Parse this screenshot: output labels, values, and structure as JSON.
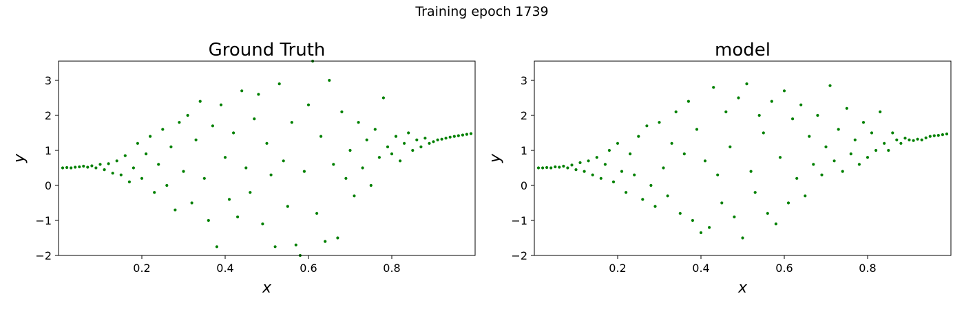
{
  "figure": {
    "suptitle": "Training epoch 1739",
    "point_color": "#008000"
  },
  "chart_data": [
    {
      "type": "scatter",
      "title": "Ground Truth",
      "xlabel": "x",
      "ylabel": "y",
      "xlim": [
        0.0,
        1.0
      ],
      "ylim": [
        -2,
        3.55
      ],
      "xticks": [
        0.2,
        0.4,
        0.6,
        0.8
      ],
      "yticks": [
        -2,
        -1,
        0,
        1,
        2,
        3
      ],
      "xtick_labels": [
        "0.2",
        "0.4",
        "0.6",
        "0.8"
      ],
      "ytick_labels": [
        "−2",
        "−1",
        "0",
        "1",
        "2",
        "3"
      ],
      "grid": false,
      "series": [
        {
          "color": "#008000",
          "points": [
            [
              0.01,
              0.5
            ],
            [
              0.02,
              0.51
            ],
            [
              0.03,
              0.5
            ],
            [
              0.04,
              0.52
            ],
            [
              0.05,
              0.53
            ],
            [
              0.06,
              0.55
            ],
            [
              0.07,
              0.52
            ],
            [
              0.08,
              0.56
            ],
            [
              0.09,
              0.5
            ],
            [
              0.1,
              0.6
            ],
            [
              0.11,
              0.45
            ],
            [
              0.12,
              0.62
            ],
            [
              0.13,
              0.35
            ],
            [
              0.14,
              0.7
            ],
            [
              0.15,
              0.3
            ],
            [
              0.16,
              0.85
            ],
            [
              0.17,
              0.1
            ],
            [
              0.18,
              0.5
            ],
            [
              0.19,
              1.2
            ],
            [
              0.2,
              0.2
            ],
            [
              0.21,
              0.9
            ],
            [
              0.22,
              1.4
            ],
            [
              0.23,
              -0.2
            ],
            [
              0.24,
              0.6
            ],
            [
              0.25,
              1.6
            ],
            [
              0.26,
              0.0
            ],
            [
              0.27,
              1.1
            ],
            [
              0.28,
              -0.7
            ],
            [
              0.29,
              1.8
            ],
            [
              0.3,
              0.4
            ],
            [
              0.31,
              2.0
            ],
            [
              0.32,
              -0.5
            ],
            [
              0.33,
              1.3
            ],
            [
              0.34,
              2.4
            ],
            [
              0.35,
              0.2
            ],
            [
              0.36,
              -1.0
            ],
            [
              0.37,
              1.7
            ],
            [
              0.38,
              -1.75
            ],
            [
              0.39,
              2.3
            ],
            [
              0.4,
              0.8
            ],
            [
              0.41,
              -0.4
            ],
            [
              0.42,
              1.5
            ],
            [
              0.43,
              -0.9
            ],
            [
              0.44,
              2.7
            ],
            [
              0.45,
              0.5
            ],
            [
              0.46,
              -0.2
            ],
            [
              0.47,
              1.9
            ],
            [
              0.48,
              2.6
            ],
            [
              0.49,
              -1.1
            ],
            [
              0.5,
              1.2
            ],
            [
              0.51,
              0.3
            ],
            [
              0.52,
              -1.75
            ],
            [
              0.53,
              2.9
            ],
            [
              0.54,
              0.7
            ],
            [
              0.55,
              -0.6
            ],
            [
              0.56,
              1.8
            ],
            [
              0.57,
              -1.7
            ],
            [
              0.58,
              -2.0
            ],
            [
              0.59,
              0.4
            ],
            [
              0.6,
              2.3
            ],
            [
              0.61,
              3.55
            ],
            [
              0.62,
              -0.8
            ],
            [
              0.63,
              1.4
            ],
            [
              0.64,
              -1.6
            ],
            [
              0.65,
              3.0
            ],
            [
              0.66,
              0.6
            ],
            [
              0.67,
              -1.5
            ],
            [
              0.68,
              2.1
            ],
            [
              0.69,
              0.2
            ],
            [
              0.7,
              1.0
            ],
            [
              0.71,
              -0.3
            ],
            [
              0.72,
              1.8
            ],
            [
              0.73,
              0.5
            ],
            [
              0.74,
              1.3
            ],
            [
              0.75,
              0.0
            ],
            [
              0.76,
              1.6
            ],
            [
              0.77,
              0.8
            ],
            [
              0.78,
              2.5
            ],
            [
              0.79,
              1.1
            ],
            [
              0.8,
              0.9
            ],
            [
              0.81,
              1.4
            ],
            [
              0.82,
              0.7
            ],
            [
              0.83,
              1.2
            ],
            [
              0.84,
              1.5
            ],
            [
              0.85,
              1.0
            ],
            [
              0.86,
              1.3
            ],
            [
              0.87,
              1.1
            ],
            [
              0.88,
              1.35
            ],
            [
              0.89,
              1.2
            ],
            [
              0.9,
              1.25
            ],
            [
              0.91,
              1.3
            ],
            [
              0.92,
              1.32
            ],
            [
              0.93,
              1.35
            ],
            [
              0.94,
              1.38
            ],
            [
              0.95,
              1.4
            ],
            [
              0.96,
              1.42
            ],
            [
              0.97,
              1.44
            ],
            [
              0.98,
              1.46
            ],
            [
              0.99,
              1.48
            ]
          ]
        }
      ]
    },
    {
      "type": "scatter",
      "title": "model",
      "xlabel": "x",
      "ylabel": "y",
      "xlim": [
        0.0,
        1.0
      ],
      "ylim": [
        -2,
        3.55
      ],
      "xticks": [
        0.2,
        0.4,
        0.6,
        0.8
      ],
      "yticks": [
        -2,
        -1,
        0,
        1,
        2,
        3
      ],
      "xtick_labels": [
        "0.2",
        "0.4",
        "0.6",
        "0.8"
      ],
      "ytick_labels": [
        "−2",
        "−1",
        "0",
        "1",
        "2",
        "3"
      ],
      "grid": false,
      "series": [
        {
          "color": "#008000",
          "points": [
            [
              0.01,
              0.5
            ],
            [
              0.02,
              0.5
            ],
            [
              0.03,
              0.51
            ],
            [
              0.04,
              0.5
            ],
            [
              0.05,
              0.53
            ],
            [
              0.06,
              0.52
            ],
            [
              0.07,
              0.55
            ],
            [
              0.08,
              0.5
            ],
            [
              0.09,
              0.58
            ],
            [
              0.1,
              0.45
            ],
            [
              0.11,
              0.65
            ],
            [
              0.12,
              0.4
            ],
            [
              0.13,
              0.7
            ],
            [
              0.14,
              0.3
            ],
            [
              0.15,
              0.8
            ],
            [
              0.16,
              0.2
            ],
            [
              0.17,
              0.6
            ],
            [
              0.18,
              1.0
            ],
            [
              0.19,
              0.1
            ],
            [
              0.2,
              1.2
            ],
            [
              0.21,
              0.4
            ],
            [
              0.22,
              -0.2
            ],
            [
              0.23,
              0.9
            ],
            [
              0.24,
              0.3
            ],
            [
              0.25,
              1.4
            ],
            [
              0.26,
              -0.4
            ],
            [
              0.27,
              1.7
            ],
            [
              0.28,
              0.0
            ],
            [
              0.29,
              -0.6
            ],
            [
              0.3,
              1.8
            ],
            [
              0.31,
              0.5
            ],
            [
              0.32,
              -0.3
            ],
            [
              0.33,
              1.2
            ],
            [
              0.34,
              2.1
            ],
            [
              0.35,
              -0.8
            ],
            [
              0.36,
              0.9
            ],
            [
              0.37,
              2.4
            ],
            [
              0.38,
              -1.0
            ],
            [
              0.39,
              1.6
            ],
            [
              0.4,
              -1.35
            ],
            [
              0.41,
              0.7
            ],
            [
              0.42,
              -1.2
            ],
            [
              0.43,
              2.8
            ],
            [
              0.44,
              0.3
            ],
            [
              0.45,
              -0.5
            ],
            [
              0.46,
              2.1
            ],
            [
              0.47,
              1.1
            ],
            [
              0.48,
              -0.9
            ],
            [
              0.49,
              2.5
            ],
            [
              0.5,
              -1.5
            ],
            [
              0.51,
              2.9
            ],
            [
              0.52,
              0.4
            ],
            [
              0.53,
              -0.2
            ],
            [
              0.54,
              2.0
            ],
            [
              0.55,
              1.5
            ],
            [
              0.56,
              -0.8
            ],
            [
              0.57,
              2.4
            ],
            [
              0.58,
              -1.1
            ],
            [
              0.59,
              0.8
            ],
            [
              0.6,
              2.7
            ],
            [
              0.61,
              -0.5
            ],
            [
              0.62,
              1.9
            ],
            [
              0.63,
              0.2
            ],
            [
              0.64,
              2.3
            ],
            [
              0.65,
              -0.3
            ],
            [
              0.66,
              1.4
            ],
            [
              0.67,
              0.6
            ],
            [
              0.68,
              2.0
            ],
            [
              0.69,
              0.3
            ],
            [
              0.7,
              1.1
            ],
            [
              0.71,
              2.85
            ],
            [
              0.72,
              0.7
            ],
            [
              0.73,
              1.6
            ],
            [
              0.74,
              0.4
            ],
            [
              0.75,
              2.2
            ],
            [
              0.76,
              0.9
            ],
            [
              0.77,
              1.3
            ],
            [
              0.78,
              0.6
            ],
            [
              0.79,
              1.8
            ],
            [
              0.8,
              0.8
            ],
            [
              0.81,
              1.5
            ],
            [
              0.82,
              1.0
            ],
            [
              0.83,
              2.1
            ],
            [
              0.84,
              1.2
            ],
            [
              0.85,
              1.0
            ],
            [
              0.86,
              1.5
            ],
            [
              0.87,
              1.3
            ],
            [
              0.88,
              1.2
            ],
            [
              0.89,
              1.35
            ],
            [
              0.9,
              1.3
            ],
            [
              0.91,
              1.28
            ],
            [
              0.92,
              1.32
            ],
            [
              0.93,
              1.3
            ],
            [
              0.94,
              1.36
            ],
            [
              0.95,
              1.4
            ],
            [
              0.96,
              1.42
            ],
            [
              0.97,
              1.43
            ],
            [
              0.98,
              1.45
            ],
            [
              0.99,
              1.47
            ]
          ]
        }
      ]
    }
  ]
}
